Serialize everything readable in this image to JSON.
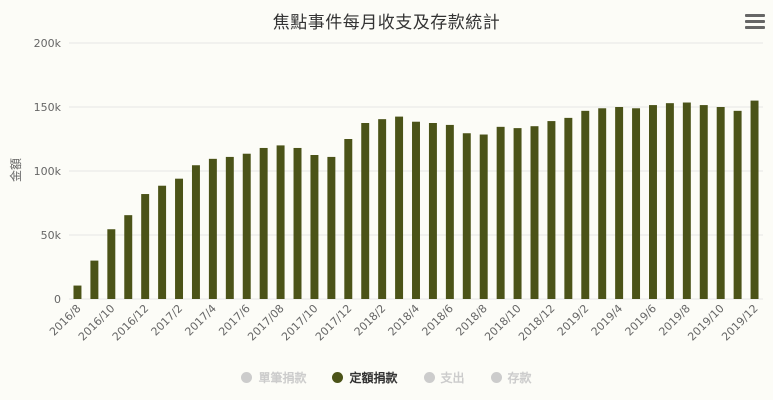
{
  "title": "焦點事件每月收支及存款統計",
  "menu": {
    "icon": "hamburger-menu-icon"
  },
  "colors": {
    "bar": "#4b5318",
    "inactive": "#cccccc",
    "grid": "#e6e6e6",
    "axis_text": "#666666"
  },
  "legend": [
    {
      "label": "單筆捐款",
      "active": false
    },
    {
      "label": "定額捐款",
      "active": true
    },
    {
      "label": "支出",
      "active": false
    },
    {
      "label": "存款",
      "active": false
    }
  ],
  "chart_data": {
    "type": "bar",
    "title": "焦點事件每月收支及存款統計",
    "xlabel": "",
    "ylabel": "金額",
    "ylim": [
      0,
      200000
    ],
    "yticks": [
      "0",
      "50k",
      "100k",
      "150k",
      "200k"
    ],
    "grid": true,
    "legend_position": "bottom",
    "categories": [
      "2016/8",
      "2016/9",
      "2016/10",
      "2016/11",
      "2016/12",
      "2017/1",
      "2017/2",
      "2017/3",
      "2017/4",
      "2017/5",
      "2017/6",
      "2017/7",
      "2017/08",
      "2017/9",
      "2017/10",
      "2017/11",
      "2017/12",
      "2018/1",
      "2018/2",
      "2018/3",
      "2018/4",
      "2018/5",
      "2018/6",
      "2018/7",
      "2018/8",
      "2018/9",
      "2018/10",
      "2018/11",
      "2018/12",
      "2019/1",
      "2019/2",
      "2019/3",
      "2019/4",
      "2019/5",
      "2019/6",
      "2019/7",
      "2019/8",
      "2019/9",
      "2019/10",
      "2019/11",
      "2019/12"
    ],
    "tick_labels": [
      "2016/8",
      "2016/10",
      "2016/12",
      "2017/2",
      "2017/4",
      "2017/6",
      "2017/08",
      "2017/10",
      "2017/12",
      "2018/2",
      "2018/4",
      "2018/6",
      "2018/8",
      "2018/10",
      "2018/12",
      "2019/2",
      "2019/4",
      "2019/6",
      "2019/8",
      "2019/10",
      "2019/12"
    ],
    "series": [
      {
        "name": "定額捐款",
        "values": [
          10500,
          30000,
          54500,
          65500,
          82000,
          88500,
          94000,
          104500,
          109500,
          111000,
          113500,
          118000,
          120000,
          118000,
          112500,
          111000,
          125000,
          137500,
          140500,
          142500,
          138500,
          137500,
          136000,
          129500,
          128500,
          134500,
          133500,
          135000,
          139000,
          141500,
          147000,
          149000,
          150000,
          149000,
          151500,
          153000,
          153500,
          151500,
          150000,
          147000,
          155000
        ]
      }
    ]
  }
}
